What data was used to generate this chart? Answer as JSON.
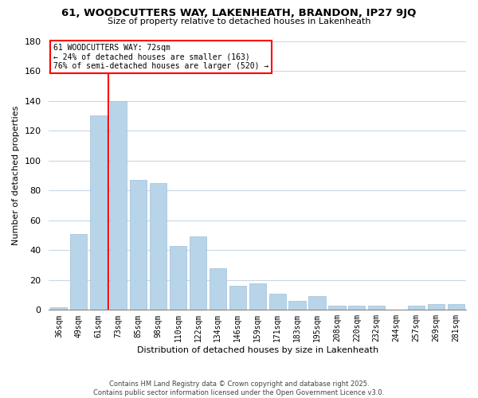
{
  "title": "61, WOODCUTTERS WAY, LAKENHEATH, BRANDON, IP27 9JQ",
  "subtitle": "Size of property relative to detached houses in Lakenheath",
  "xlabel": "Distribution of detached houses by size in Lakenheath",
  "ylabel": "Number of detached properties",
  "categories": [
    "36sqm",
    "49sqm",
    "61sqm",
    "73sqm",
    "85sqm",
    "98sqm",
    "110sqm",
    "122sqm",
    "134sqm",
    "146sqm",
    "159sqm",
    "171sqm",
    "183sqm",
    "195sqm",
    "208sqm",
    "220sqm",
    "232sqm",
    "244sqm",
    "257sqm",
    "269sqm",
    "281sqm"
  ],
  "values": [
    2,
    51,
    130,
    140,
    87,
    85,
    43,
    49,
    28,
    16,
    18,
    11,
    6,
    9,
    3,
    3,
    3,
    0,
    3,
    4,
    4
  ],
  "bar_color": "#b8d4e8",
  "bar_edge_color": "#a0bfd8",
  "redline_index": 3,
  "redline_label": "61 WOODCUTTERS WAY: 72sqm",
  "annotation_line1": "← 24% of detached houses are smaller (163)",
  "annotation_line2": "76% of semi-detached houses are larger (520) →",
  "ylim": [
    0,
    180
  ],
  "yticks": [
    0,
    20,
    40,
    60,
    80,
    100,
    120,
    140,
    160,
    180
  ],
  "bg_color": "#ffffff",
  "grid_color": "#c8d8e8",
  "footer1": "Contains HM Land Registry data © Crown copyright and database right 2025.",
  "footer2": "Contains public sector information licensed under the Open Government Licence v3.0."
}
